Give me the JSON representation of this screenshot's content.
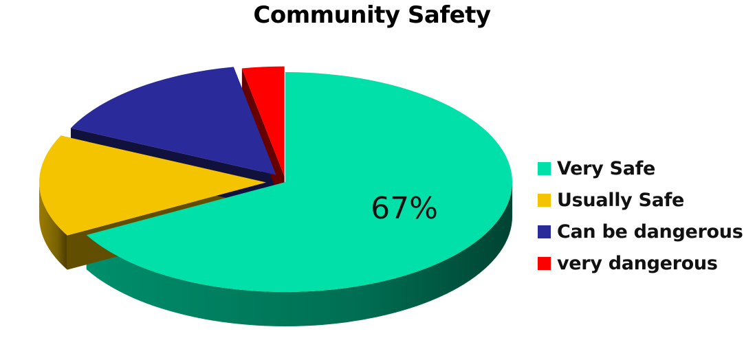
{
  "chart_data": {
    "type": "pie",
    "title": "Community Safety",
    "series": [
      {
        "name": "Very Safe",
        "value": 67,
        "color": "#00E0A8",
        "label": "67%"
      },
      {
        "name": "Usually Safe",
        "value": 15,
        "color": "#F5C400",
        "label": ""
      },
      {
        "name": "Can be dangerous",
        "value": 15,
        "color": "#2A2A9A",
        "label": ""
      },
      {
        "name": "very dangerous",
        "value": 3,
        "color": "#FF0000",
        "label": ""
      }
    ],
    "legend_position": "right",
    "three_d": true,
    "exploded": true
  }
}
